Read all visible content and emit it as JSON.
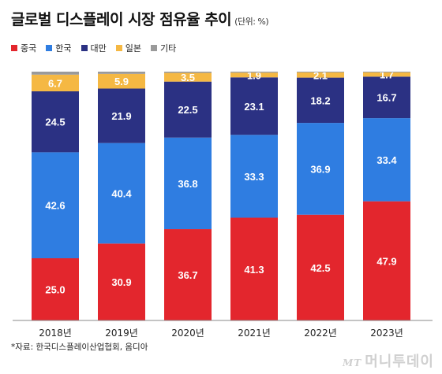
{
  "title": "글로벌 디스플레이 시장 점유율 추이",
  "unit": "(단위: %)",
  "source": "*자료: 한국디스플레이산업협회, 옴디아",
  "watermark": {
    "mt": "MT",
    "text": "머니투데이"
  },
  "colors": {
    "중국": "#e3262d",
    "한국": "#2f7de1",
    "대만": "#2b3183",
    "일본": "#f5b843",
    "기타": "#9a9a9a"
  },
  "chart_data": {
    "type": "bar",
    "stacked": true,
    "categories": [
      "2018년",
      "2019년",
      "2020년",
      "2021년",
      "2022년",
      "2023년"
    ],
    "series": [
      {
        "name": "중국",
        "values": [
          25.0,
          30.9,
          36.7,
          41.3,
          42.5,
          47.9
        ]
      },
      {
        "name": "한국",
        "values": [
          42.6,
          40.4,
          36.8,
          33.3,
          36.9,
          33.4
        ]
      },
      {
        "name": "대만",
        "values": [
          24.5,
          21.9,
          22.5,
          23.1,
          18.2,
          16.7
        ]
      },
      {
        "name": "일본",
        "values": [
          6.7,
          5.9,
          3.5,
          1.9,
          2.1,
          1.7
        ]
      },
      {
        "name": "기타",
        "values": [
          1.2,
          0.9,
          0.5,
          0.4,
          0.3,
          0.3
        ]
      }
    ],
    "data_labels": [
      [
        "25.0",
        "30.9",
        "36.7",
        "41.3",
        "42.5",
        "47.9"
      ],
      [
        "42.6",
        "40.4",
        "36.8",
        "33.3",
        "36.9",
        "33.4"
      ],
      [
        "24.5",
        "21.9",
        "22.5",
        "23.1",
        "18.2",
        "16.7"
      ],
      [
        "6.7",
        "5.9",
        "3.5",
        "1.9",
        "2.1",
        "1.7"
      ],
      [
        "",
        "",
        "",
        "",
        "",
        ""
      ]
    ],
    "ylim": [
      0,
      100
    ],
    "legend_position": "top-left",
    "grid": false
  }
}
